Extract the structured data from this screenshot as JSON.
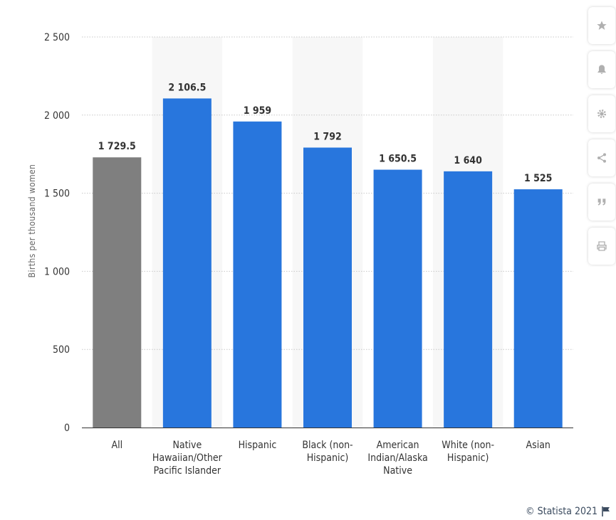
{
  "chart_data": {
    "type": "bar",
    "ylabel": "Births per thousand women",
    "xlabel": "",
    "ylim": [
      0,
      2500
    ],
    "yticks": [
      0,
      500,
      1000,
      1500,
      2000,
      2500
    ],
    "ytick_labels": [
      "0",
      "500",
      "1 000",
      "1 500",
      "2 000",
      "2 500"
    ],
    "grid": true,
    "categories": [
      "All",
      "Native Hawaiian/Other Pacific Islander",
      "Hispanic",
      "Black (non-Hispanic)",
      "American Indian/Alaska Native",
      "White (non-Hispanic)",
      "Asian"
    ],
    "category_display_lines": [
      [
        "All"
      ],
      [
        "Native",
        "Hawaiian/Other",
        "Pacific Islander"
      ],
      [
        "Hispanic"
      ],
      [
        "Black (non-",
        "Hispanic)"
      ],
      [
        "American",
        "Indian/Alaska",
        "Native"
      ],
      [
        "White (non-",
        "Hispanic)"
      ],
      [
        "Asian"
      ]
    ],
    "values": [
      1729.5,
      2106.5,
      1959,
      1792,
      1650.5,
      1640,
      1525
    ],
    "value_labels": [
      "1 729.5",
      "2 106.5",
      "1 959",
      "1 792",
      "1 650.5",
      "1 640",
      "1 525"
    ],
    "colors": [
      "#7f7f7f",
      "#2876dd",
      "#2876dd",
      "#2876dd",
      "#2876dd",
      "#2876dd",
      "#2876dd"
    ],
    "highlight_band_color": "#f7f7f7"
  },
  "toolbar": {
    "items": [
      {
        "icon": "star-icon",
        "glyph": "★"
      },
      {
        "icon": "bell-icon",
        "glyph": "🔔"
      },
      {
        "icon": "gear-icon",
        "glyph": "⚙"
      },
      {
        "icon": "share-icon",
        "glyph": "⋖"
      },
      {
        "icon": "quote-icon",
        "glyph": "❞"
      },
      {
        "icon": "print-icon",
        "glyph": "⎙"
      }
    ]
  },
  "footer": {
    "credit": "© Statista 2021",
    "flag_icon": "flag-icon"
  }
}
